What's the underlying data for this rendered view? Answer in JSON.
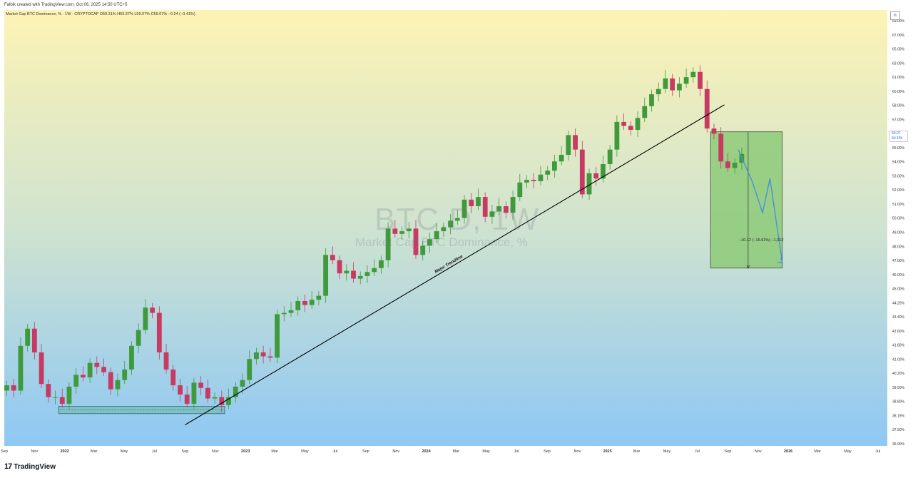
{
  "header": {
    "attribution": "Falbik created with TradingView.com, Oct 06, 2025 14:50 UTC+5"
  },
  "legend": {
    "text": "Market Cap BTC Dominance, % · 1W · CRYPTOCAP O59.31% H59.37% L59.07% C59.07% −0.24 (−0.41%)"
  },
  "watermark": {
    "ticker": "BTC.D, 1W",
    "name": "Market Cap BTC Dominance, %"
  },
  "price_scale": {
    "button": "%",
    "current_price": "59.07",
    "countdown": "6d 15h"
  },
  "footer": {
    "logo_mark": "17",
    "logo_text": "TradingView"
  },
  "colors": {
    "bg_top": "#fdf3b5",
    "bg_bottom": "#8ec8f4",
    "up": "#3f9a3c",
    "down": "#c73a63",
    "trendline": "#000000",
    "projection": "#4a8fe0",
    "target_box": "#8dca78",
    "support_box": "#6fb8b0"
  },
  "chart_data": {
    "type": "candlestick",
    "symbol": "BTC.D",
    "interval": "1W",
    "ylim": [
      36.9,
      70.0
    ],
    "y_ticks": [
      "69.00%",
      "67.00%",
      "65.00%",
      "63.00%",
      "61.00%",
      "60.00%",
      "58.00%",
      "57.00%",
      "56.00%",
      "55.00%",
      "54.00%",
      "53.00%",
      "52.00%",
      "51.00%",
      "50.00%",
      "49.00%",
      "48.00%",
      "47.00%",
      "46.00%",
      "45.00%",
      "44.20%",
      "43.40%",
      "42.60%",
      "41.80%",
      "41.00%",
      "40.20%",
      "39.50%",
      "38.80%",
      "38.15%",
      "37.50%",
      "36.90%"
    ],
    "x_ticks": [
      "Sep",
      "Nov",
      "2022",
      "Mar",
      "May",
      "Jul",
      "Sep",
      "Nov",
      "2023",
      "Mar",
      "May",
      "Jul",
      "Sep",
      "Nov",
      "2024",
      "Mar",
      "May",
      "Jul",
      "Sep",
      "Nov",
      "2025",
      "Mar",
      "May",
      "Jul",
      "Sep",
      "Nov",
      "2026",
      "Mar",
      "May",
      "Jul"
    ],
    "x_range": [
      "2021-09-01",
      "2026-07-20"
    ],
    "close_series": [
      [
        "2021-09-06",
        41.5
      ],
      [
        "2021-09-20",
        41.1
      ],
      [
        "2021-10-04",
        44.5
      ],
      [
        "2021-10-18",
        45.8
      ],
      [
        "2021-11-01",
        44.0
      ],
      [
        "2021-11-15",
        41.6
      ],
      [
        "2021-11-29",
        40.6
      ],
      [
        "2021-12-13",
        40.6
      ],
      [
        "2021-12-27",
        40.1
      ],
      [
        "2022-01-10",
        41.4
      ],
      [
        "2022-01-24",
        42.3
      ],
      [
        "2022-02-07",
        42.1
      ],
      [
        "2022-02-21",
        43.2
      ],
      [
        "2022-03-07",
        42.9
      ],
      [
        "2022-03-21",
        42.5
      ],
      [
        "2022-04-04",
        41.2
      ],
      [
        "2022-04-18",
        41.9
      ],
      [
        "2022-05-02",
        42.7
      ],
      [
        "2022-05-16",
        44.5
      ],
      [
        "2022-05-30",
        45.7
      ],
      [
        "2022-06-13",
        47.4
      ],
      [
        "2022-06-27",
        47.0
      ],
      [
        "2022-07-11",
        44.0
      ],
      [
        "2022-07-25",
        42.7
      ],
      [
        "2022-08-08",
        41.5
      ],
      [
        "2022-08-22",
        40.8
      ],
      [
        "2022-09-05",
        40.1
      ],
      [
        "2022-09-19",
        41.7
      ],
      [
        "2022-10-03",
        41.3
      ],
      [
        "2022-10-17",
        40.5
      ],
      [
        "2022-10-31",
        40.6
      ],
      [
        "2022-11-14",
        40.0
      ],
      [
        "2022-11-28",
        40.6
      ],
      [
        "2022-12-12",
        41.4
      ],
      [
        "2022-12-26",
        41.9
      ],
      [
        "2023-01-09",
        43.5
      ],
      [
        "2023-01-23",
        44.0
      ],
      [
        "2023-02-06",
        43.7
      ],
      [
        "2023-02-20",
        43.6
      ],
      [
        "2023-03-06",
        46.9
      ],
      [
        "2023-03-20",
        47.0
      ],
      [
        "2023-04-03",
        47.2
      ],
      [
        "2023-04-17",
        47.9
      ],
      [
        "2023-05-01",
        47.6
      ],
      [
        "2023-05-15",
        48.0
      ],
      [
        "2023-05-29",
        48.3
      ],
      [
        "2023-06-12",
        51.4
      ],
      [
        "2023-06-26",
        51.0
      ],
      [
        "2023-07-10",
        50.0
      ],
      [
        "2023-07-24",
        50.2
      ],
      [
        "2023-08-07",
        49.6
      ],
      [
        "2023-08-21",
        49.8
      ],
      [
        "2023-09-04",
        50.1
      ],
      [
        "2023-09-18",
        50.4
      ],
      [
        "2023-10-02",
        51.0
      ],
      [
        "2023-10-16",
        53.4
      ],
      [
        "2023-10-30",
        53.0
      ],
      [
        "2023-11-13",
        53.2
      ],
      [
        "2023-11-27",
        53.4
      ],
      [
        "2023-12-11",
        51.4
      ],
      [
        "2023-12-25",
        52.1
      ],
      [
        "2024-01-08",
        52.6
      ],
      [
        "2024-01-22",
        53.2
      ],
      [
        "2024-02-05",
        53.5
      ],
      [
        "2024-02-19",
        54.0
      ],
      [
        "2024-03-04",
        54.2
      ],
      [
        "2024-03-18",
        55.6
      ],
      [
        "2024-04-01",
        55.1
      ],
      [
        "2024-04-15",
        55.8
      ],
      [
        "2024-04-29",
        54.3
      ],
      [
        "2024-05-13",
        54.7
      ],
      [
        "2024-05-27",
        55.1
      ],
      [
        "2024-06-10",
        54.6
      ],
      [
        "2024-06-24",
        55.8
      ],
      [
        "2024-07-08",
        56.9
      ],
      [
        "2024-07-22",
        57.1
      ],
      [
        "2024-08-05",
        57.0
      ],
      [
        "2024-08-19",
        57.5
      ],
      [
        "2024-09-02",
        57.8
      ],
      [
        "2024-09-16",
        58.5
      ],
      [
        "2024-09-30",
        59.0
      ],
      [
        "2024-10-14",
        60.5
      ],
      [
        "2024-10-28",
        59.4
      ],
      [
        "2024-11-11",
        56.0
      ],
      [
        "2024-11-25",
        57.6
      ],
      [
        "2024-12-09",
        57.2
      ],
      [
        "2024-12-23",
        58.3
      ],
      [
        "2025-01-06",
        59.4
      ],
      [
        "2025-01-20",
        61.5
      ],
      [
        "2025-02-03",
        61.2
      ],
      [
        "2025-02-17",
        60.9
      ],
      [
        "2025-03-03",
        61.8
      ],
      [
        "2025-03-17",
        62.7
      ],
      [
        "2025-03-31",
        63.6
      ],
      [
        "2025-04-14",
        64.0
      ],
      [
        "2025-04-28",
        64.8
      ],
      [
        "2025-05-12",
        63.9
      ],
      [
        "2025-05-26",
        64.4
      ],
      [
        "2025-06-09",
        64.9
      ],
      [
        "2025-06-23",
        65.3
      ],
      [
        "2025-07-07",
        64.0
      ],
      [
        "2025-07-21",
        61.0
      ],
      [
        "2025-08-04",
        60.6
      ],
      [
        "2025-08-18",
        58.5
      ],
      [
        "2025-09-01",
        58.0
      ],
      [
        "2025-09-15",
        58.4
      ],
      [
        "2025-09-29",
        59.07
      ]
    ],
    "annotations": {
      "trendline_label": "Major Trendline",
      "target_label": "−10.12 (−16.61%) −1,012",
      "trendline": [
        [
          "2022-09-01",
          38.5
        ],
        [
          "2025-08-25",
          62.8
        ]
      ],
      "support_zone": {
        "from": "2021-12-20",
        "to": "2022-11-20",
        "low": 39.35,
        "high": 39.9
      },
      "target_zone": {
        "from": "2025-07-28",
        "to": "2025-12-20",
        "low": 50.4,
        "high": 60.75
      },
      "projection": [
        [
          "2025-09-22",
          59.4
        ],
        [
          "2025-10-20",
          57.0
        ],
        [
          "2025-11-10",
          54.6
        ],
        [
          "2025-11-25",
          57.2
        ],
        [
          "2025-12-20",
          50.8
        ]
      ]
    }
  }
}
